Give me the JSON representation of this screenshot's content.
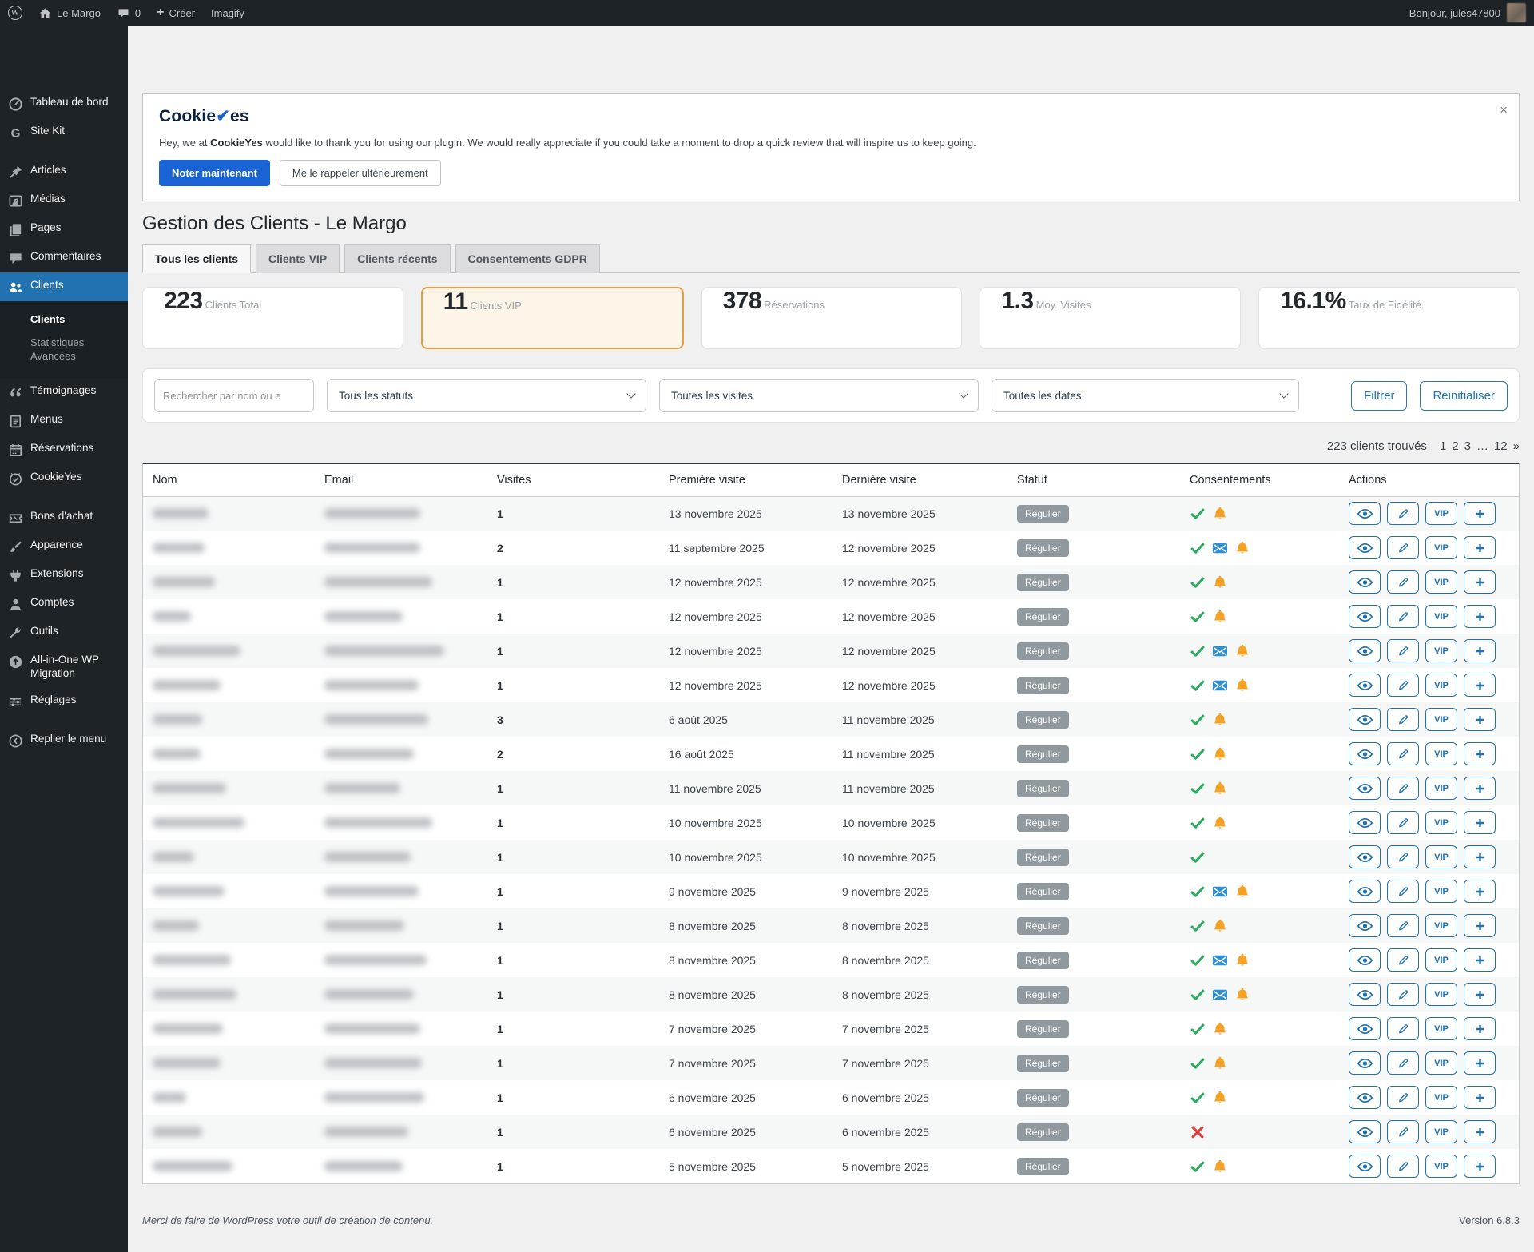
{
  "admin_bar": {
    "site_name": "Le Margo",
    "comments_count": "0",
    "create_label": "Créer",
    "imagify_label": "Imagify",
    "greeting": "Bonjour, jules47800"
  },
  "sidebar": {
    "items": [
      {
        "label": "Tableau de bord",
        "icon": "dashboard-icon"
      },
      {
        "label": "Site Kit",
        "icon": "sitekit-icon"
      },
      {
        "label": "Articles",
        "icon": "pin-icon",
        "gap": true
      },
      {
        "label": "Médias",
        "icon": "media-icon"
      },
      {
        "label": "Pages",
        "icon": "pages-icon"
      },
      {
        "label": "Commentaires",
        "icon": "comments-icon"
      },
      {
        "label": "Clients",
        "icon": "users-icon",
        "active": true
      },
      {
        "label": "Témoignages",
        "icon": "quote-icon"
      },
      {
        "label": "Menus",
        "icon": "menus-icon"
      },
      {
        "label": "Réservations",
        "icon": "calendar-icon"
      },
      {
        "label": "CookieYes",
        "icon": "cookieyes-icon"
      },
      {
        "label": "Bons d'achat",
        "icon": "coupon-icon",
        "gap": true
      },
      {
        "label": "Apparence",
        "icon": "appearance-icon"
      },
      {
        "label": "Extensions",
        "icon": "plugin-icon"
      },
      {
        "label": "Comptes",
        "icon": "account-icon"
      },
      {
        "label": "Outils",
        "icon": "tools-icon"
      },
      {
        "label": "All-in-One WP Migration",
        "icon": "migration-icon"
      },
      {
        "label": "Réglages",
        "icon": "settings-icon"
      },
      {
        "label": "Replier le menu",
        "icon": "collapse-icon",
        "gap": true
      }
    ],
    "submenu": [
      "Clients",
      "Statistiques Avancées"
    ]
  },
  "notice": {
    "brand": "CookieYes",
    "message_prefix": "Hey, we at ",
    "message_brand": "CookieYes",
    "message_suffix": " would like to thank you for using our plugin. We would really appreciate if you could take a moment to drop a quick review that will inspire us to keep going.",
    "primary_button": "Noter maintenant",
    "secondary_button": "Me le rappeler ultérieurement",
    "close_label": "×"
  },
  "page": {
    "title": "Gestion des Clients - Le Margo"
  },
  "tabs": [
    {
      "label": "Tous les clients",
      "active": true
    },
    {
      "label": "Clients VIP",
      "active": false
    },
    {
      "label": "Clients récents",
      "active": false
    },
    {
      "label": "Consentements GDPR",
      "active": false
    }
  ],
  "stats": [
    {
      "value": "223",
      "label": "Clients Total",
      "highlight": false
    },
    {
      "value": "11",
      "label": "Clients VIP",
      "highlight": true
    },
    {
      "value": "378",
      "label": "Réservations",
      "highlight": false
    },
    {
      "value": "1.3",
      "label": "Moy. Visites",
      "highlight": false
    },
    {
      "value": "16.1%",
      "label": "Taux de Fidélité",
      "highlight": false
    }
  ],
  "filters": {
    "search_placeholder": "Rechercher par nom ou e",
    "status_select": "Tous les statuts",
    "visits_select": "Toutes les visites",
    "dates_select": "Toutes les dates",
    "filter_button": "Filtrer",
    "reset_button": "Réinitialiser"
  },
  "results": {
    "count_text": "223 clients trouvés",
    "pagination": [
      "1",
      "2",
      "3",
      "…",
      "12",
      "»"
    ]
  },
  "table": {
    "headers": [
      "Nom",
      "Email",
      "Visites",
      "Première visite",
      "Dernière visite",
      "Statut",
      "Consentements",
      "Actions"
    ],
    "actions": [
      {
        "name": "view",
        "icon": "eye"
      },
      {
        "name": "edit",
        "icon": "pencil"
      },
      {
        "name": "vip",
        "label": "VIP"
      },
      {
        "name": "add",
        "icon": "plus"
      }
    ],
    "rows": [
      {
        "redacted": true,
        "name_w": 70,
        "email_w": 120,
        "visits": "1",
        "first_visit": "13 novembre 2025",
        "last_visit": "13 novembre 2025",
        "status": "Régulier",
        "consents": [
          "accepted",
          "notifications"
        ]
      },
      {
        "redacted": true,
        "name_w": 65,
        "email_w": 120,
        "visits": "2",
        "first_visit": "11 septembre 2025",
        "last_visit": "12 novembre 2025",
        "status": "Régulier",
        "consents": [
          "accepted",
          "email-optin",
          "notifications"
        ]
      },
      {
        "redacted": true,
        "name_w": 78,
        "email_w": 135,
        "visits": "1",
        "first_visit": "12 novembre 2025",
        "last_visit": "12 novembre 2025",
        "status": "Régulier",
        "consents": [
          "accepted",
          "notifications"
        ]
      },
      {
        "redacted": true,
        "name_w": 48,
        "email_w": 98,
        "visits": "1",
        "first_visit": "12 novembre 2025",
        "last_visit": "12 novembre 2025",
        "status": "Régulier",
        "consents": [
          "accepted",
          "notifications"
        ]
      },
      {
        "redacted": true,
        "name_w": 110,
        "email_w": 150,
        "visits": "1",
        "first_visit": "12 novembre 2025",
        "last_visit": "12 novembre 2025",
        "status": "Régulier",
        "consents": [
          "accepted",
          "email-optin",
          "notifications"
        ]
      },
      {
        "redacted": true,
        "name_w": 85,
        "email_w": 118,
        "visits": "1",
        "first_visit": "12 novembre 2025",
        "last_visit": "12 novembre 2025",
        "status": "Régulier",
        "consents": [
          "accepted",
          "email-optin",
          "notifications"
        ]
      },
      {
        "redacted": true,
        "name_w": 62,
        "email_w": 130,
        "visits": "3",
        "first_visit": "6 août 2025",
        "last_visit": "11 novembre 2025",
        "status": "Régulier",
        "consents": [
          "accepted",
          "notifications"
        ]
      },
      {
        "redacted": true,
        "name_w": 60,
        "email_w": 112,
        "visits": "2",
        "first_visit": "16 août 2025",
        "last_visit": "11 novembre 2025",
        "status": "Régulier",
        "consents": [
          "accepted",
          "notifications"
        ]
      },
      {
        "redacted": true,
        "name_w": 92,
        "email_w": 95,
        "visits": "1",
        "first_visit": "11 novembre 2025",
        "last_visit": "11 novembre 2025",
        "status": "Régulier",
        "consents": [
          "accepted",
          "notifications"
        ]
      },
      {
        "redacted": true,
        "name_w": 115,
        "email_w": 135,
        "visits": "1",
        "first_visit": "10 novembre 2025",
        "last_visit": "10 novembre 2025",
        "status": "Régulier",
        "consents": [
          "accepted",
          "notifications"
        ]
      },
      {
        "redacted": true,
        "name_w": 52,
        "email_w": 108,
        "visits": "1",
        "first_visit": "10 novembre 2025",
        "last_visit": "10 novembre 2025",
        "status": "Régulier",
        "consents": [
          "accepted"
        ]
      },
      {
        "redacted": true,
        "name_w": 90,
        "email_w": 118,
        "visits": "1",
        "first_visit": "9 novembre 2025",
        "last_visit": "9 novembre 2025",
        "status": "Régulier",
        "consents": [
          "accepted",
          "email-optin",
          "notifications"
        ]
      },
      {
        "redacted": true,
        "name_w": 58,
        "email_w": 100,
        "visits": "1",
        "first_visit": "8 novembre 2025",
        "last_visit": "8 novembre 2025",
        "status": "Régulier",
        "consents": [
          "accepted",
          "notifications"
        ]
      },
      {
        "redacted": true,
        "name_w": 98,
        "email_w": 128,
        "visits": "1",
        "first_visit": "8 novembre 2025",
        "last_visit": "8 novembre 2025",
        "status": "Régulier",
        "consents": [
          "accepted",
          "email-optin",
          "notifications"
        ]
      },
      {
        "redacted": true,
        "name_w": 105,
        "email_w": 112,
        "visits": "1",
        "first_visit": "8 novembre 2025",
        "last_visit": "8 novembre 2025",
        "status": "Régulier",
        "consents": [
          "accepted",
          "email-optin",
          "notifications"
        ]
      },
      {
        "redacted": true,
        "name_w": 88,
        "email_w": 120,
        "visits": "1",
        "first_visit": "7 novembre 2025",
        "last_visit": "7 novembre 2025",
        "status": "Régulier",
        "consents": [
          "accepted",
          "notifications"
        ]
      },
      {
        "redacted": true,
        "name_w": 85,
        "email_w": 122,
        "visits": "1",
        "first_visit": "7 novembre 2025",
        "last_visit": "7 novembre 2025",
        "status": "Régulier",
        "consents": [
          "accepted",
          "notifications"
        ]
      },
      {
        "redacted": true,
        "name_w": 42,
        "email_w": 125,
        "visits": "1",
        "first_visit": "6 novembre 2025",
        "last_visit": "6 novembre 2025",
        "status": "Régulier",
        "consents": [
          "accepted",
          "notifications"
        ]
      },
      {
        "redacted": true,
        "name_w": 62,
        "email_w": 105,
        "visits": "1",
        "first_visit": "6 novembre 2025",
        "last_visit": "6 novembre 2025",
        "status": "Régulier",
        "consents": [
          "refused"
        ]
      },
      {
        "redacted": true,
        "name_w": 100,
        "email_w": 98,
        "visits": "1",
        "first_visit": "5 novembre 2025",
        "last_visit": "5 novembre 2025",
        "status": "Régulier",
        "consents": [
          "accepted",
          "notifications"
        ]
      }
    ]
  },
  "footer": {
    "thanks": "Merci de faire de WordPress votre outil de création de contenu.",
    "version": "Version 6.8.3"
  },
  "colors": {
    "active_menu": "#2271b1",
    "primary_button": "#1a63d4",
    "highlight_card_border": "#dfa04b",
    "consent_accepted": "#2faa63",
    "consent_email": "#2e8fd4",
    "consent_notifications": "#f5a124",
    "consent_refused": "#e23b3b",
    "status_badge": "#90999d"
  }
}
